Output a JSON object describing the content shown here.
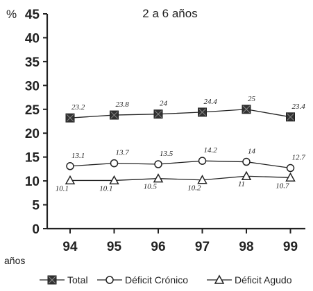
{
  "chart_data": {
    "type": "line",
    "title": "2 a 6 años",
    "ylabel": "%",
    "xlabel": "años",
    "categories": [
      "94",
      "95",
      "96",
      "97",
      "98",
      "99"
    ],
    "ylim": [
      0,
      45
    ],
    "yticks": [
      0,
      5,
      10,
      15,
      20,
      25,
      30,
      35,
      40,
      45
    ],
    "grid": false,
    "legend_position": "bottom",
    "series": [
      {
        "name": "Total",
        "marker": "filled-square",
        "values": [
          23.2,
          23.8,
          24,
          24.4,
          25,
          23.4
        ],
        "labels": [
          "23.2",
          "23.8",
          "24",
          "24.4",
          "25",
          "23.4"
        ]
      },
      {
        "name": "Déficit Crónico",
        "marker": "open-circle",
        "values": [
          13.1,
          13.7,
          13.5,
          14.2,
          14,
          12.7
        ],
        "labels": [
          "13.1",
          "13.7",
          "13.5",
          "14.2",
          "14",
          "12.7"
        ]
      },
      {
        "name": "Déficit Agudo",
        "marker": "open-triangle",
        "values": [
          10.1,
          10.1,
          10.5,
          10.2,
          11,
          10.7
        ],
        "labels": [
          "10.1",
          "10.1",
          "10.5",
          "10.2",
          "11",
          "10.7"
        ]
      }
    ],
    "colors": {
      "line": "#222222",
      "marker_fill": "#333333"
    }
  }
}
